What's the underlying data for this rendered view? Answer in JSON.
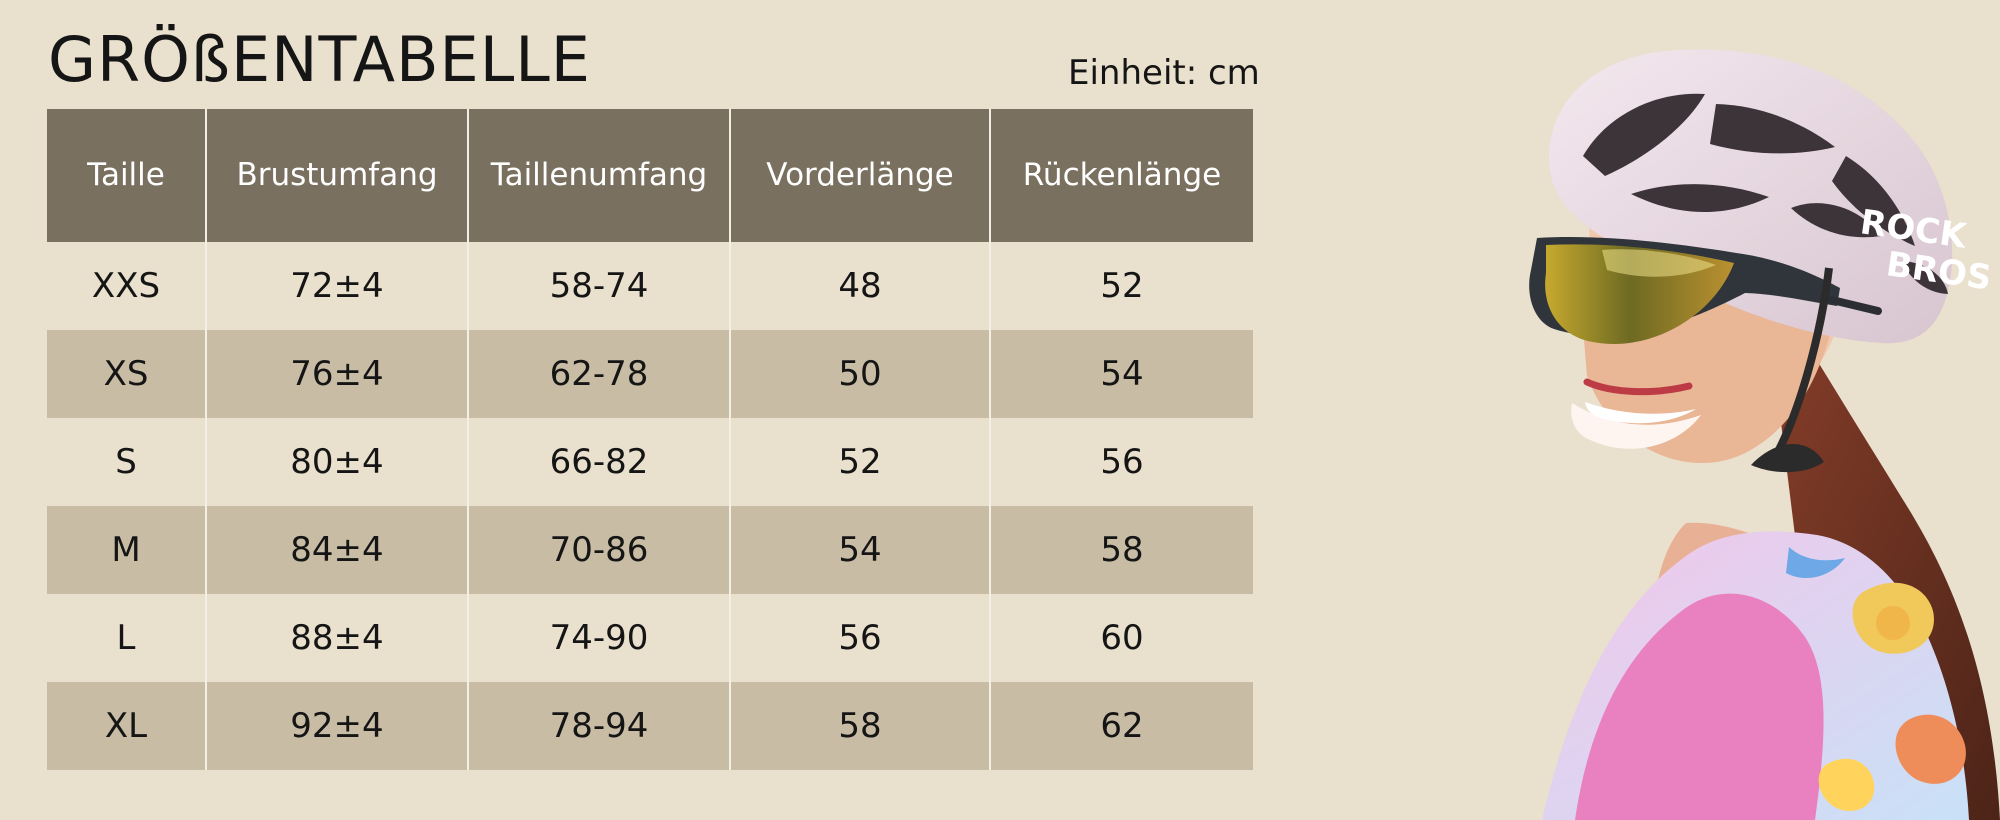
{
  "title": "GRÖßENTABELLE",
  "unit": "Einheit: cm",
  "colors": {
    "background": "#e9e0cd",
    "header": "#7a7060",
    "row_dark": "#c8bca5",
    "row_light": "#e9e0cd",
    "text": "#151515"
  },
  "table": {
    "headers": [
      "Taille",
      "Brustumfang",
      "Taillenumfang",
      "Vorderlänge",
      "Rückenlänge"
    ],
    "rows": [
      [
        "XXS",
        "72±4",
        "58-74",
        "48",
        "52"
      ],
      [
        "XS",
        "76±4",
        "62-78",
        "50",
        "54"
      ],
      [
        "S",
        "80±4",
        "66-82",
        "52",
        "56"
      ],
      [
        "M",
        "84±4",
        "70-86",
        "54",
        "58"
      ],
      [
        "L",
        "88±4",
        "74-90",
        "56",
        "60"
      ],
      [
        "XL",
        "92±4",
        "78-94",
        "58",
        "62"
      ]
    ]
  },
  "photo": {
    "helmet_lettering": [
      "ROCK",
      "BROS"
    ]
  }
}
